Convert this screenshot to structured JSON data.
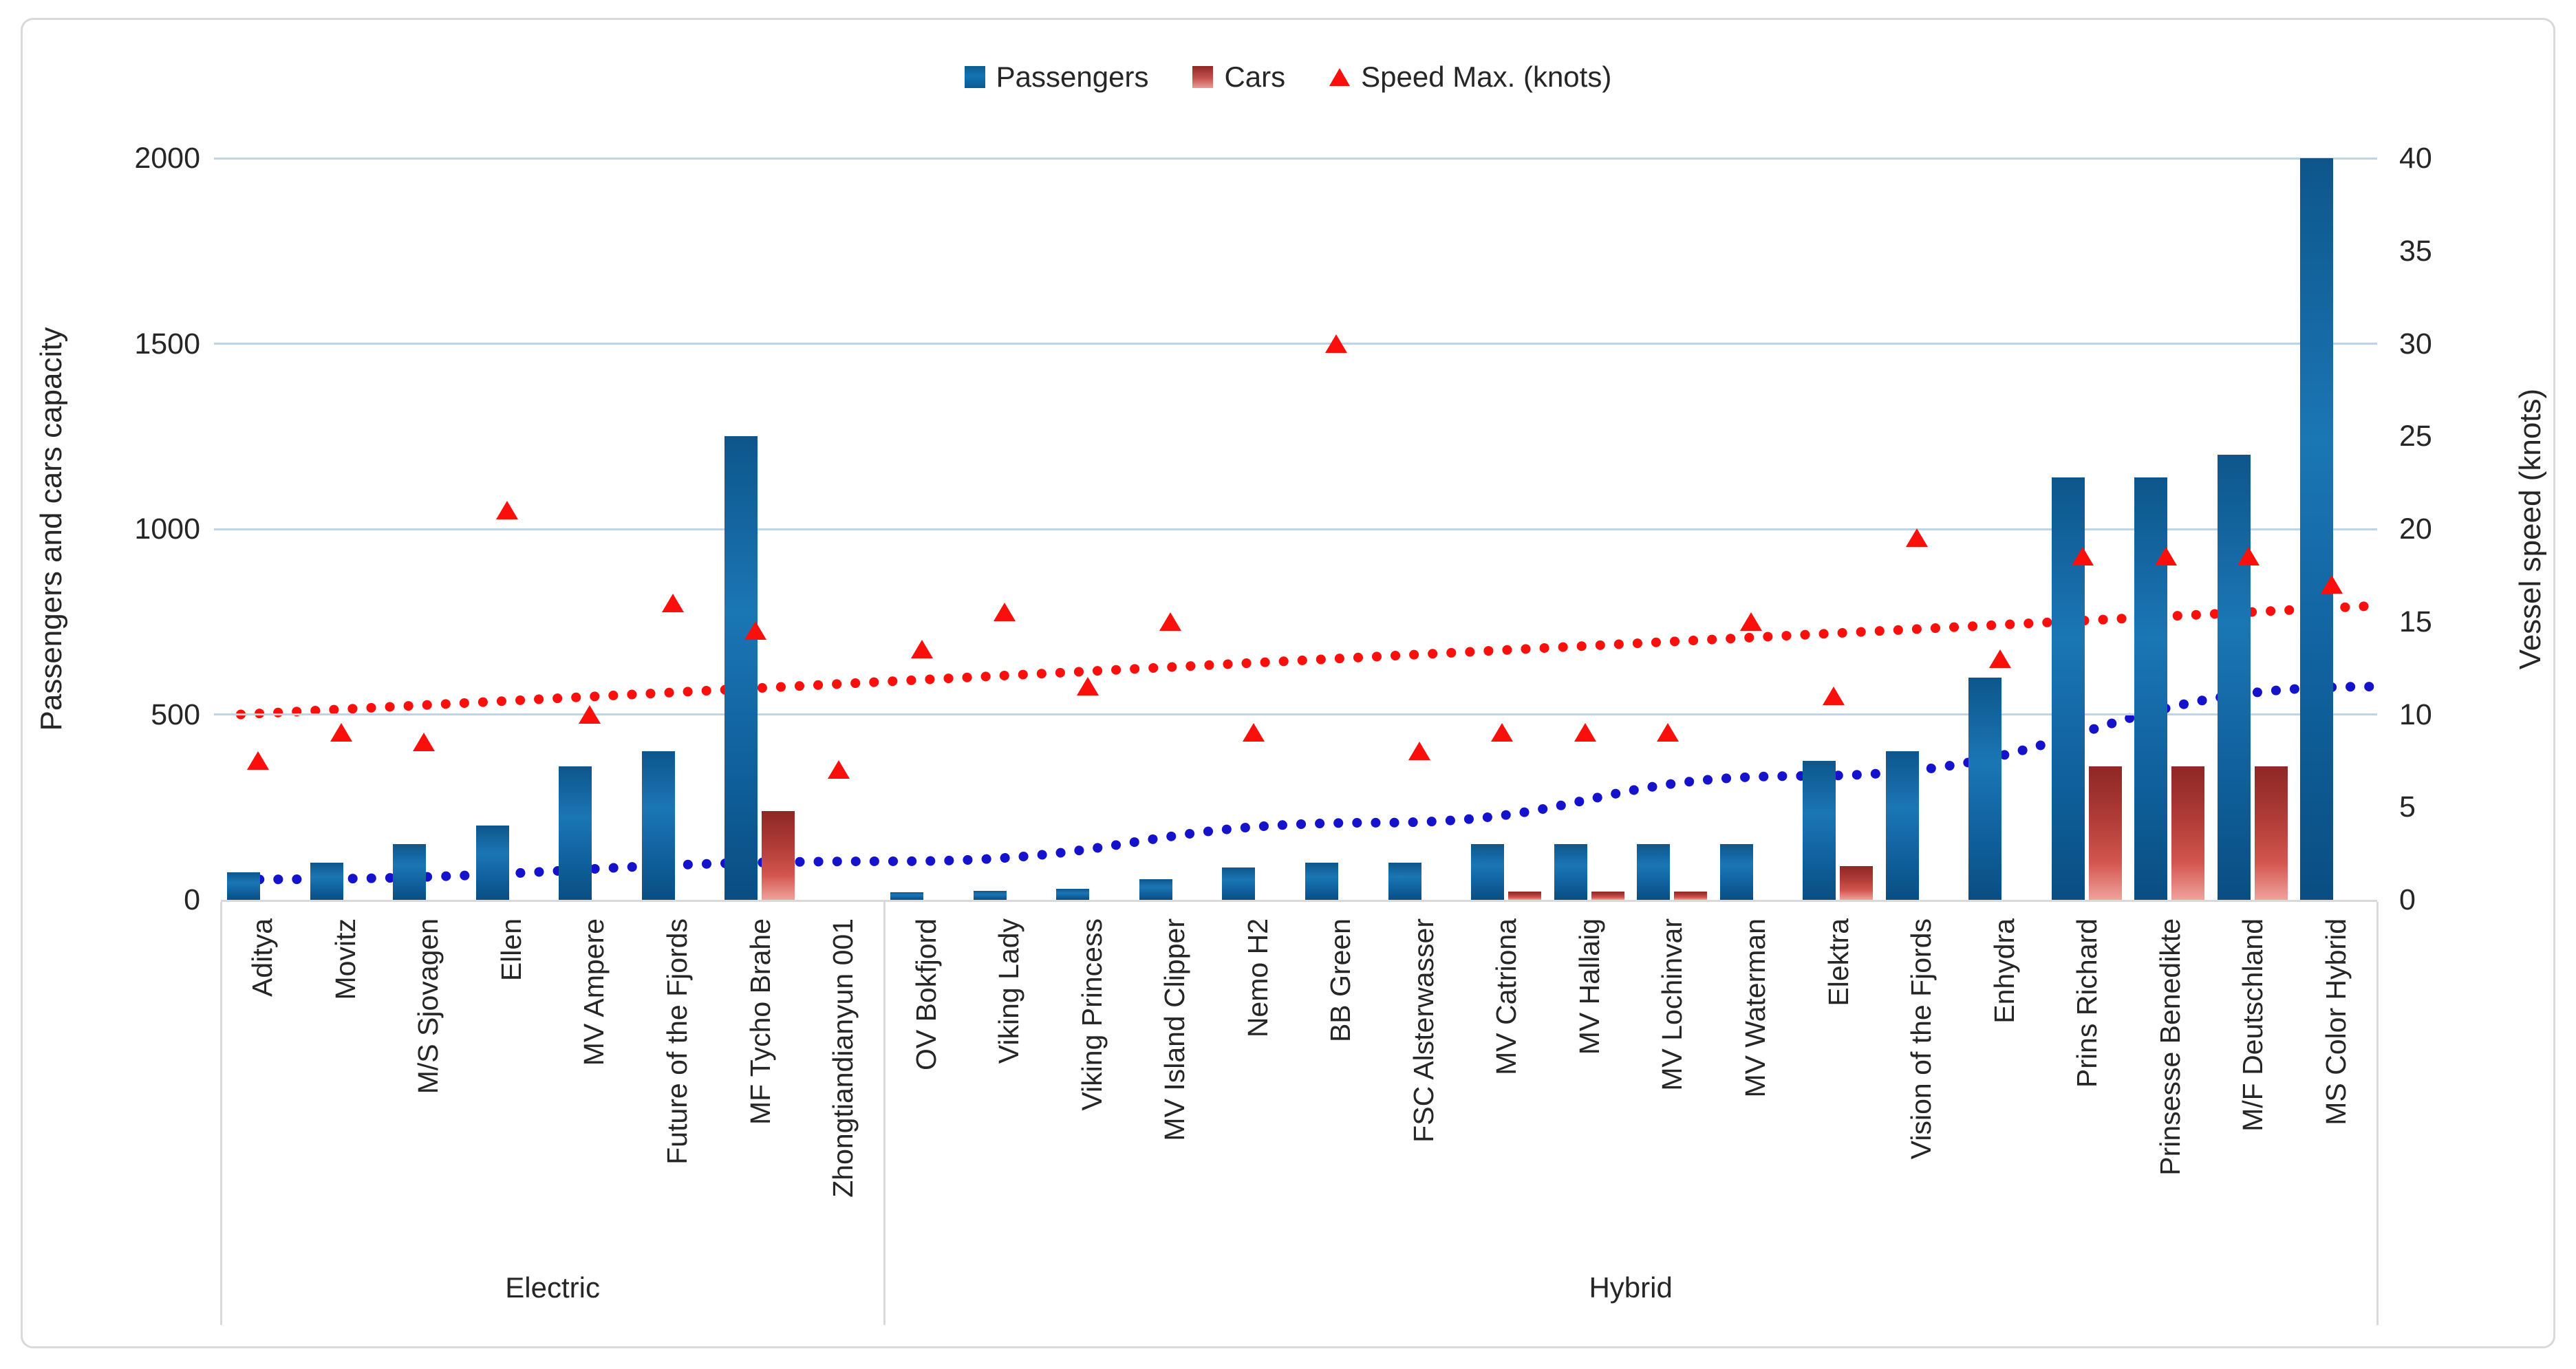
{
  "legend": {
    "passengers_label": "Passengers",
    "cars_label": "Cars",
    "speed_label": "Speed Max. (knots)"
  },
  "axes": {
    "left_title": "Passengers and cars capacity",
    "right_title": "Vessel speed (knots)",
    "left_ticks": [
      0,
      500,
      1000,
      1500,
      2000
    ],
    "right_ticks": [
      0,
      5,
      10,
      15,
      20,
      25,
      30,
      35,
      40
    ]
  },
  "groups": [
    {
      "label": "Electric",
      "count": 8
    },
    {
      "label": "Hybrid",
      "count": 18
    }
  ],
  "colors": {
    "passengers_bar": "#0f609c",
    "cars_bar": "#b03c38",
    "speed_marker": "#fb0f0c",
    "passengers_trend": "#1512cb",
    "speed_trend": "#fb0f0c",
    "gridline": "#bdd3e6",
    "axis_box": "#d9d9d9"
  },
  "chart_data": {
    "type": "bar",
    "title": "",
    "xlabel": "",
    "ylabel_left": "Passengers and cars capacity",
    "ylabel_right": "Vessel speed (knots)",
    "ylim_left": [
      0,
      2000
    ],
    "ylim_right": [
      0,
      40
    ],
    "grid": true,
    "legend_position": "top-center",
    "categories": [
      "Aditya",
      "Movitz",
      "M/S Sjovagen",
      "Ellen",
      "MV Ampere",
      "Future of the Fjords",
      "MF Tycho Brahe",
      "Zhongtiandianyun 001",
      "OV Bokfjord",
      "Viking Lady",
      "Viking Princess",
      "MV Island Clipper",
      "Nemo H2",
      "BB Green",
      "FSC Alsterwasser",
      "MV Catriona",
      "MV Hallaig",
      "MV Lochinvar",
      "MV Waterman",
      "Elektra",
      "Vision of the Fjords",
      "Enhydra",
      "Prins Richard",
      "Prinsesse Benedikte",
      "M/F Deutschland",
      "MS Color Hybrid"
    ],
    "ships": [
      {
        "name": "Aditya",
        "group": "Electric",
        "passengers": 75,
        "cars": null,
        "speed_knots": 7.5
      },
      {
        "name": "Movitz",
        "group": "Electric",
        "passengers": 100,
        "cars": null,
        "speed_knots": 9
      },
      {
        "name": "M/S Sjovagen",
        "group": "Electric",
        "passengers": 150,
        "cars": null,
        "speed_knots": 8.5
      },
      {
        "name": "Ellen",
        "group": "Electric",
        "passengers": 200,
        "cars": null,
        "speed_knots": 21
      },
      {
        "name": "MV Ampere",
        "group": "Electric",
        "passengers": 360,
        "cars": null,
        "speed_knots": 10
      },
      {
        "name": "Future of the Fjords",
        "group": "Electric",
        "passengers": 400,
        "cars": null,
        "speed_knots": 16
      },
      {
        "name": "MF Tycho Brahe",
        "group": "Electric",
        "passengers": 1250,
        "cars": 240,
        "speed_knots": 14.5
      },
      {
        "name": "Zhongtiandianyun 001",
        "group": "Electric",
        "passengers": 0,
        "cars": null,
        "speed_knots": 7
      },
      {
        "name": "OV Bokfjord",
        "group": "Hybrid",
        "passengers": 20,
        "cars": null,
        "speed_knots": 13.5
      },
      {
        "name": "Viking Lady",
        "group": "Hybrid",
        "passengers": 25,
        "cars": null,
        "speed_knots": 15.5
      },
      {
        "name": "Viking Princess",
        "group": "Hybrid",
        "passengers": 30,
        "cars": null,
        "speed_knots": 11.5
      },
      {
        "name": "MV Island Clipper",
        "group": "Hybrid",
        "passengers": 55,
        "cars": null,
        "speed_knots": 15
      },
      {
        "name": "Nemo H2",
        "group": "Hybrid",
        "passengers": 88,
        "cars": null,
        "speed_knots": 9
      },
      {
        "name": "BB Green",
        "group": "Hybrid",
        "passengers": 100,
        "cars": null,
        "speed_knots": 30
      },
      {
        "name": "FSC Alsterwasser",
        "group": "Hybrid",
        "passengers": 100,
        "cars": null,
        "speed_knots": 8
      },
      {
        "name": "MV Catriona",
        "group": "Hybrid",
        "passengers": 150,
        "cars": 23,
        "speed_knots": 9
      },
      {
        "name": "MV Hallaig",
        "group": "Hybrid",
        "passengers": 150,
        "cars": 23,
        "speed_knots": 9
      },
      {
        "name": "MV Lochinvar",
        "group": "Hybrid",
        "passengers": 150,
        "cars": 23,
        "speed_knots": 9
      },
      {
        "name": "MV Waterman",
        "group": "Hybrid",
        "passengers": 150,
        "cars": null,
        "speed_knots": 15
      },
      {
        "name": "Elektra",
        "group": "Hybrid",
        "passengers": 375,
        "cars": 90,
        "speed_knots": 11
      },
      {
        "name": "Vision of the Fjords",
        "group": "Hybrid",
        "passengers": 400,
        "cars": null,
        "speed_knots": 19.5
      },
      {
        "name": "Enhydra",
        "group": "Hybrid",
        "passengers": 600,
        "cars": null,
        "speed_knots": 13
      },
      {
        "name": "Prins Richard",
        "group": "Hybrid",
        "passengers": 1140,
        "cars": 360,
        "speed_knots": 18.5
      },
      {
        "name": "Prinsesse Benedikte",
        "group": "Hybrid",
        "passengers": 1140,
        "cars": 360,
        "speed_knots": 18.5
      },
      {
        "name": "M/F Deutschland",
        "group": "Hybrid",
        "passengers": 1200,
        "cars": 360,
        "speed_knots": 18.5
      },
      {
        "name": "MS Color Hybrid",
        "group": "Hybrid",
        "passengers": 2000,
        "cars": null,
        "speed_knots": 17
      }
    ],
    "trendlines": [
      {
        "series": "Speed Max. (knots)",
        "style": "dotted",
        "color": "#fb0f0c",
        "axis": "right",
        "points_knots": [
          [
            350,
            10.0
          ],
          [
            3445,
            15.85
          ]
        ]
      },
      {
        "series": "Passengers",
        "style": "dotted",
        "color": "#1512cb",
        "axis": "left",
        "points_units": [
          [
            350,
            55
          ],
          [
            1300,
            104
          ],
          [
            2000,
            208
          ],
          [
            2620,
            334
          ],
          [
            3445,
            575
          ]
        ]
      }
    ]
  }
}
